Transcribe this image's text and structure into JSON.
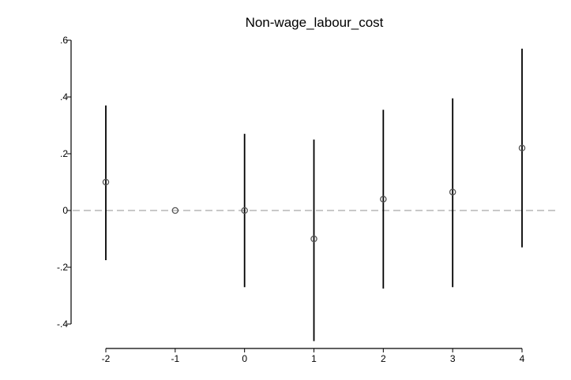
{
  "chart_data": {
    "type": "scatter",
    "title": "Non-wage_labour_cost",
    "xlabel": "",
    "ylabel": "",
    "x": [
      -2,
      -1,
      0,
      1,
      2,
      3,
      4
    ],
    "y": [
      0.1,
      0.0,
      0.0,
      -0.1,
      0.04,
      0.065,
      0.22
    ],
    "ci_lower": [
      -0.175,
      0.0,
      -0.27,
      -0.46,
      -0.275,
      -0.27,
      -0.13
    ],
    "ci_upper": [
      0.37,
      0.0,
      0.27,
      0.25,
      0.355,
      0.395,
      0.57
    ],
    "xlim": [
      -2,
      4
    ],
    "ylim": [
      -0.4,
      0.6
    ],
    "x_ticks": [
      -2,
      -1,
      0,
      1,
      2,
      3,
      4
    ],
    "x_tick_labels": [
      "-2",
      "-1",
      "0",
      "1",
      "2",
      "3",
      "4"
    ],
    "y_ticks": [
      -0.4,
      -0.2,
      0,
      0.2,
      0.4,
      0.6
    ],
    "y_tick_labels": [
      "-.4",
      "-.2",
      "0",
      ".2",
      ".4",
      ".6"
    ],
    "reference_line": 0,
    "grid": false,
    "legend": "none",
    "colors": {
      "marker": "#555555",
      "ci_line": "#000000",
      "reference_line": "#a6a6a6",
      "axis": "#000000"
    }
  }
}
